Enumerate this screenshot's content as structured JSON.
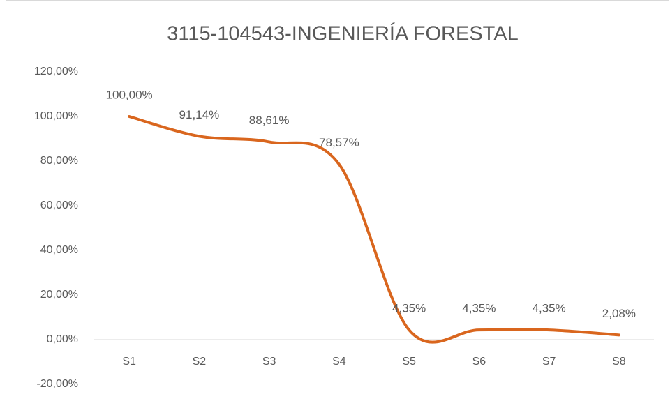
{
  "chart_data": {
    "type": "line",
    "title": "3115-104543-INGENIERÍA FORESTAL",
    "categories": [
      "S1",
      "S2",
      "S3",
      "S4",
      "S5",
      "S6",
      "S7",
      "S8"
    ],
    "series": [
      {
        "name": "3115-104543-INGENIERÍA FORESTAL",
        "color": "#d9661e",
        "values": [
          100,
          91.14,
          88.61,
          78.57,
          4.35,
          4.35,
          4.35,
          2.08
        ],
        "value_labels": [
          "100,00%",
          "91,14%",
          "88,61%",
          "78,57%",
          "4,35%",
          "4,35%",
          "4,35%",
          "2,08%"
        ]
      }
    ],
    "ylim": [
      -20,
      120
    ],
    "yticks": [
      {
        "value": -20,
        "label": "-20,00%"
      },
      {
        "value": 0,
        "label": "0,00%"
      },
      {
        "value": 20,
        "label": "20,00%"
      },
      {
        "value": 40,
        "label": "40,00%"
      },
      {
        "value": 60,
        "label": "60,00%"
      },
      {
        "value": 80,
        "label": "80,00%"
      },
      {
        "value": 100,
        "label": "100,00%"
      },
      {
        "value": 120,
        "label": "120,00%"
      }
    ],
    "smooth": true
  }
}
